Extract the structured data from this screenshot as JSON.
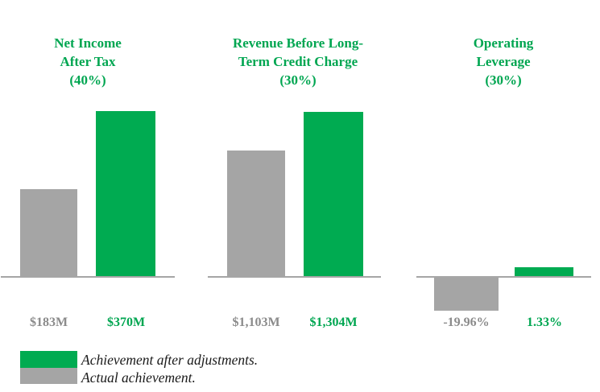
{
  "colors": {
    "green_accent": "#00ab51",
    "green_text": "#00a651",
    "gray_bar": "#a5a5a5",
    "gray_text": "#8b8b8b",
    "axis_line": "#a6a6a6",
    "legend_text": "#1a1a1a"
  },
  "chart_data": [
    {
      "type": "bar",
      "title": "Net Income After Tax (40%)",
      "title_lines": [
        "Net Income",
        "After Tax",
        "(40%)"
      ],
      "weight": "40%",
      "categories": [
        "Actual achievement",
        "Achievement after adjustments"
      ],
      "values": [
        183,
        370
      ],
      "value_labels": [
        "$183M",
        "$370M"
      ],
      "unit": "$M",
      "ylim": [
        0,
        420
      ],
      "grid": false
    },
    {
      "type": "bar",
      "title": "Revenue Before Long-Term Credit Charge (30%)",
      "title_lines": [
        "Revenue Before Long-",
        "Term Credit Charge",
        "(30%)"
      ],
      "weight": "30%",
      "categories": [
        "Actual achievement",
        "Achievement after adjustments"
      ],
      "values": [
        1103,
        1304
      ],
      "value_labels": [
        "$1,103M",
        "$1,304M"
      ],
      "unit": "$M",
      "ylim": [
        0,
        1450
      ],
      "grid": false
    },
    {
      "type": "bar",
      "title": "Operating Leverage (30%)",
      "title_lines": [
        "Operating",
        "Leverage",
        "(30%)"
      ],
      "weight": "30%",
      "categories": [
        "Actual achievement",
        "Achievement after adjustments"
      ],
      "values": [
        -19.96,
        1.33
      ],
      "value_labels": [
        "-19.96%",
        "1.33%"
      ],
      "unit": "%",
      "ylim": [
        -22,
        6
      ],
      "grid": false
    }
  ],
  "legend": {
    "position": "bottom-left",
    "items": [
      {
        "label": "Achievement after adjustments.",
        "color": "#00ab51",
        "swatch": "green"
      },
      {
        "label": "Actual achievement.",
        "color": "#a5a5a5",
        "swatch": "gray"
      }
    ]
  }
}
